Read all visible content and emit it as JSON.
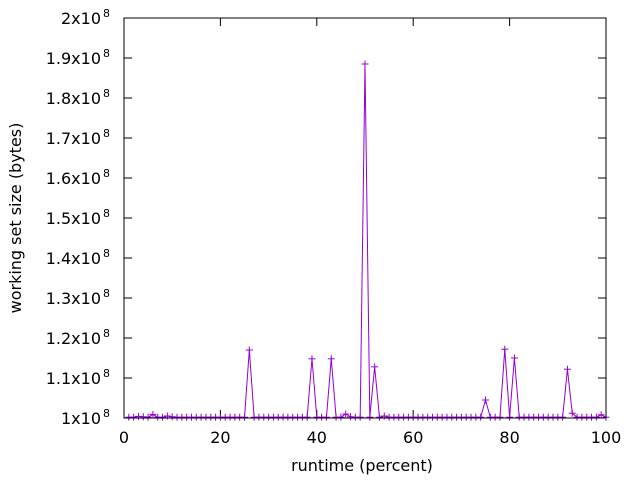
{
  "chart_data": {
    "type": "line",
    "title": "",
    "xlabel": "runtime (percent)",
    "ylabel": "working set size (bytes)",
    "xlim": [
      0,
      100
    ],
    "ylim": [
      100000000,
      200000000
    ],
    "grid": false,
    "legend": "none",
    "colors": {
      "series": "#9400d3",
      "axis": "#000000"
    },
    "marker": "plus",
    "x_ticks": [
      {
        "value": 0,
        "label": "0"
      },
      {
        "value": 20,
        "label": "20"
      },
      {
        "value": 40,
        "label": "40"
      },
      {
        "value": 60,
        "label": "60"
      },
      {
        "value": 80,
        "label": "80"
      },
      {
        "value": 100,
        "label": "100"
      }
    ],
    "y_ticks": [
      {
        "value": 100000000,
        "mantissa": "1x10",
        "exp": "8"
      },
      {
        "value": 110000000,
        "mantissa": "1.1x10",
        "exp": "8"
      },
      {
        "value": 120000000,
        "mantissa": "1.2x10",
        "exp": "8"
      },
      {
        "value": 130000000,
        "mantissa": "1.3x10",
        "exp": "8"
      },
      {
        "value": 140000000,
        "mantissa": "1.4x10",
        "exp": "8"
      },
      {
        "value": 150000000,
        "mantissa": "1.5x10",
        "exp": "8"
      },
      {
        "value": 160000000,
        "mantissa": "1.6x10",
        "exp": "8"
      },
      {
        "value": 170000000,
        "mantissa": "1.7x10",
        "exp": "8"
      },
      {
        "value": 180000000,
        "mantissa": "1.8x10",
        "exp": "8"
      },
      {
        "value": 190000000,
        "mantissa": "1.9x10",
        "exp": "8"
      },
      {
        "value": 200000000,
        "mantissa": "2x10",
        "exp": "8"
      }
    ],
    "series": [
      {
        "x": [
          1,
          2,
          3,
          4,
          5,
          6,
          7,
          8,
          9,
          10,
          11,
          12,
          13,
          14,
          15,
          16,
          17,
          18,
          19,
          20,
          21,
          22,
          23,
          24,
          25,
          26,
          27,
          28,
          29,
          30,
          31,
          32,
          33,
          34,
          35,
          36,
          37,
          38,
          39,
          40,
          41,
          42,
          43,
          44,
          45,
          46,
          47,
          48,
          49,
          50,
          51,
          52,
          53,
          54,
          55,
          56,
          57,
          58,
          59,
          60,
          61,
          62,
          63,
          64,
          65,
          66,
          67,
          68,
          69,
          70,
          71,
          72,
          73,
          74,
          75,
          76,
          77,
          78,
          79,
          80,
          81,
          82,
          83,
          84,
          85,
          86,
          87,
          88,
          89,
          90,
          91,
          92,
          93,
          94,
          95,
          96,
          97,
          98,
          99,
          100
        ],
        "y": [
          100200000,
          100200000,
          100400000,
          100300000,
          100200000,
          100900000,
          100200000,
          100200000,
          100500000,
          100300000,
          100200000,
          100200000,
          100200000,
          100200000,
          100200000,
          100200000,
          100200000,
          100200000,
          100200000,
          100200000,
          100200000,
          100200000,
          100200000,
          100200000,
          100200000,
          117000000,
          100200000,
          100200000,
          100200000,
          100200000,
          100200000,
          100200000,
          100200000,
          100200000,
          100200000,
          100200000,
          100200000,
          100200000,
          114800000,
          100200000,
          100200000,
          100200000,
          114800000,
          100200000,
          100200000,
          101000000,
          100300000,
          100200000,
          100200000,
          188500000,
          100200000,
          112800000,
          100200000,
          100500000,
          100200000,
          100200000,
          100200000,
          100200000,
          100200000,
          100200000,
          100200000,
          100200000,
          100200000,
          100200000,
          100200000,
          100200000,
          100200000,
          100200000,
          100200000,
          100200000,
          100200000,
          100200000,
          100200000,
          100200000,
          104500000,
          100200000,
          100200000,
          100200000,
          117200000,
          100200000,
          115000000,
          100200000,
          100200000,
          100200000,
          100200000,
          100200000,
          100200000,
          100200000,
          100200000,
          100200000,
          100200000,
          112200000,
          101200000,
          100200000,
          100200000,
          100200000,
          100200000,
          100200000,
          100800000,
          100200000
        ]
      }
    ]
  }
}
